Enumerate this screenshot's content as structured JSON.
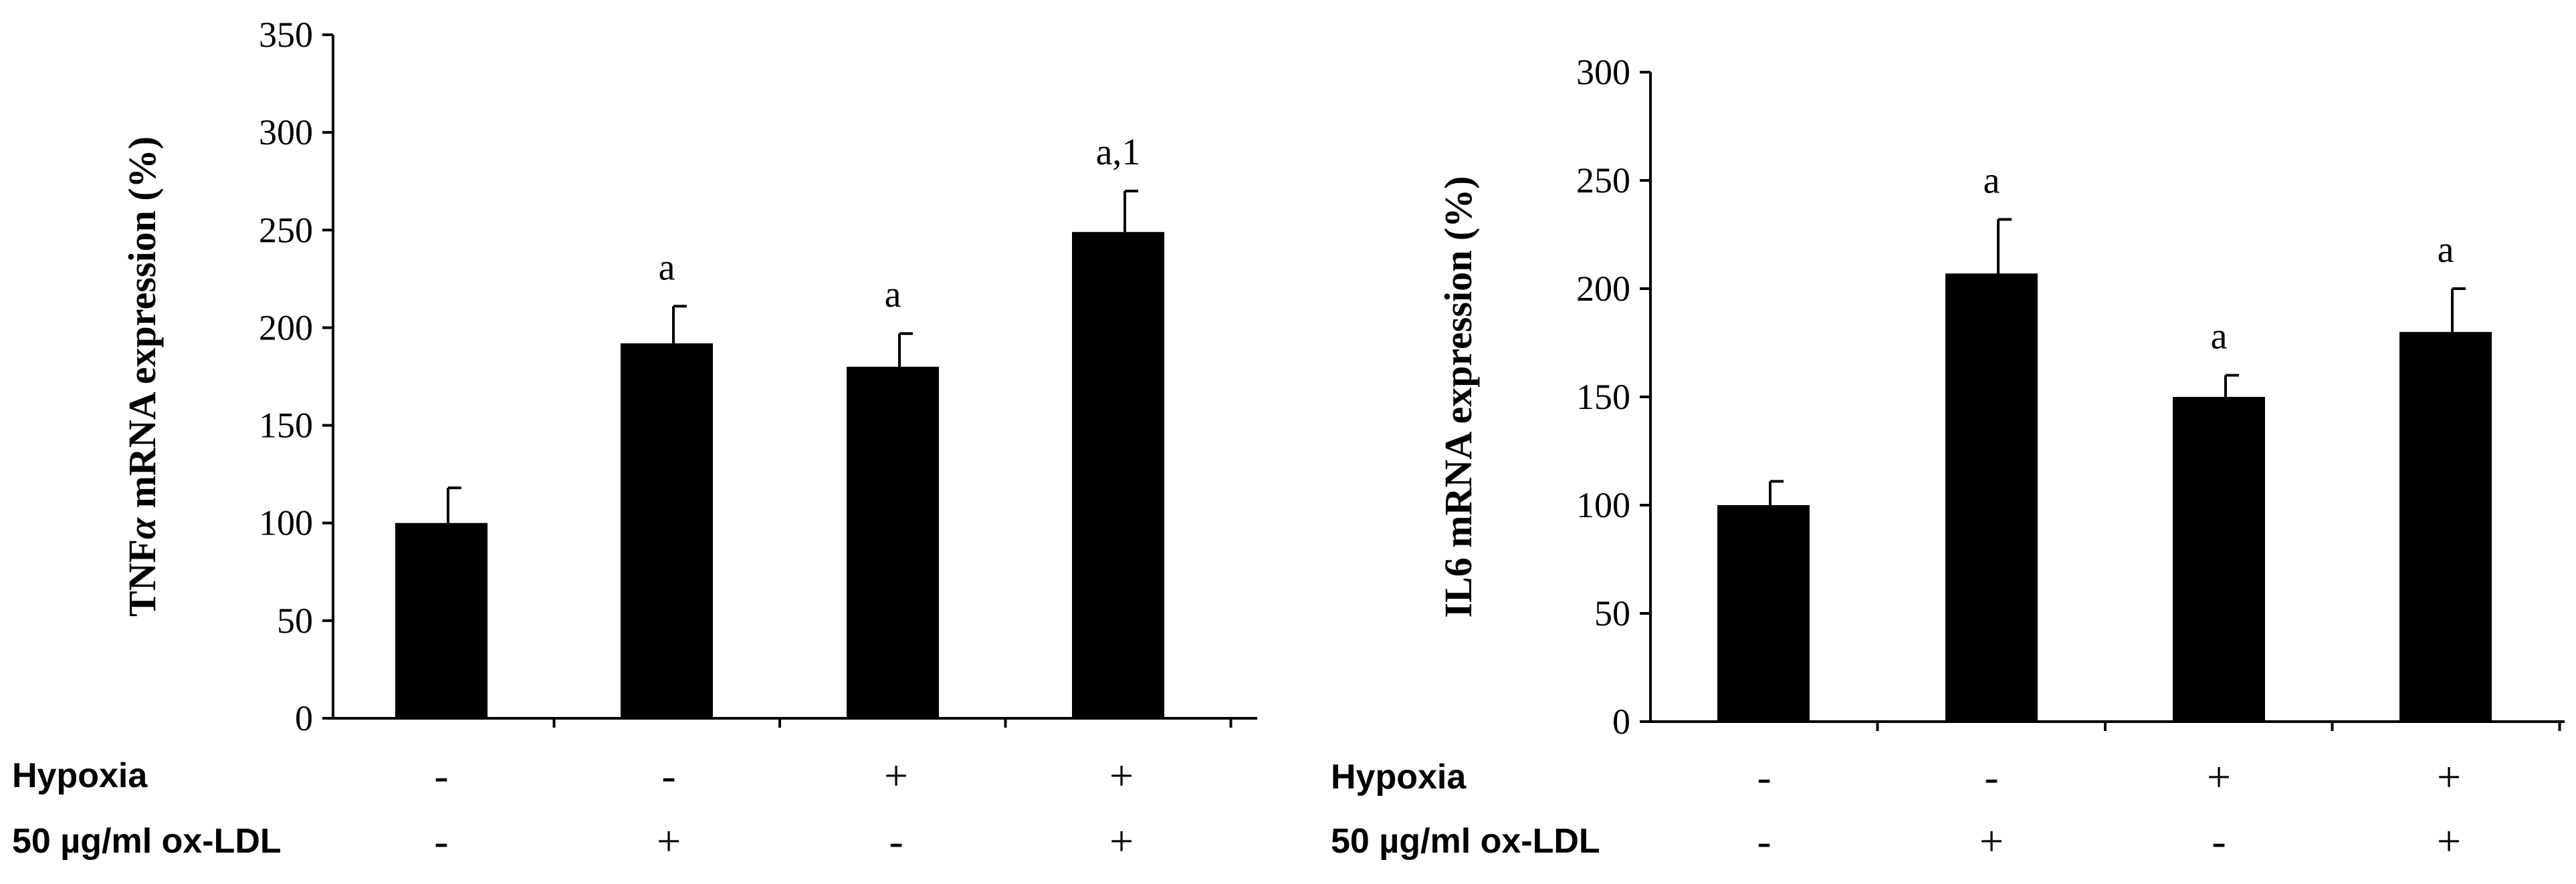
{
  "chart_data": [
    {
      "type": "bar",
      "ylabel_prefix": "TNF",
      "ylabel_greek": "α",
      "ylabel_suffix": " mRNA expression (%)",
      "ylim": [
        0,
        350
      ],
      "yticks": [
        0,
        50,
        100,
        150,
        200,
        250,
        300,
        350
      ],
      "values": [
        100,
        192,
        180,
        249
      ],
      "errors": [
        18,
        19,
        17,
        21
      ],
      "significance": [
        "",
        "a",
        "a",
        "a,1"
      ],
      "conditions": [
        {
          "label": "Hypoxia",
          "signs": [
            "-",
            "-",
            "+",
            "+"
          ]
        },
        {
          "label": "50 µg/ml ox-LDL",
          "signs": [
            "-",
            "+",
            "-",
            "+"
          ]
        }
      ]
    },
    {
      "type": "bar",
      "ylabel": "IL6 mRNA expression (%)",
      "ylim": [
        0,
        300
      ],
      "yticks": [
        0,
        50,
        100,
        150,
        200,
        250,
        300
      ],
      "values": [
        100,
        207,
        150,
        180
      ],
      "errors": [
        11,
        25,
        10,
        20
      ],
      "significance": [
        "",
        "a",
        "a",
        "a"
      ],
      "conditions": [
        {
          "label": "Hypoxia",
          "signs": [
            "-",
            "-",
            "+",
            "+"
          ]
        },
        {
          "label": "50 µg/ml ox-LDL",
          "signs": [
            "-",
            "+",
            "-",
            "+"
          ]
        }
      ]
    }
  ]
}
